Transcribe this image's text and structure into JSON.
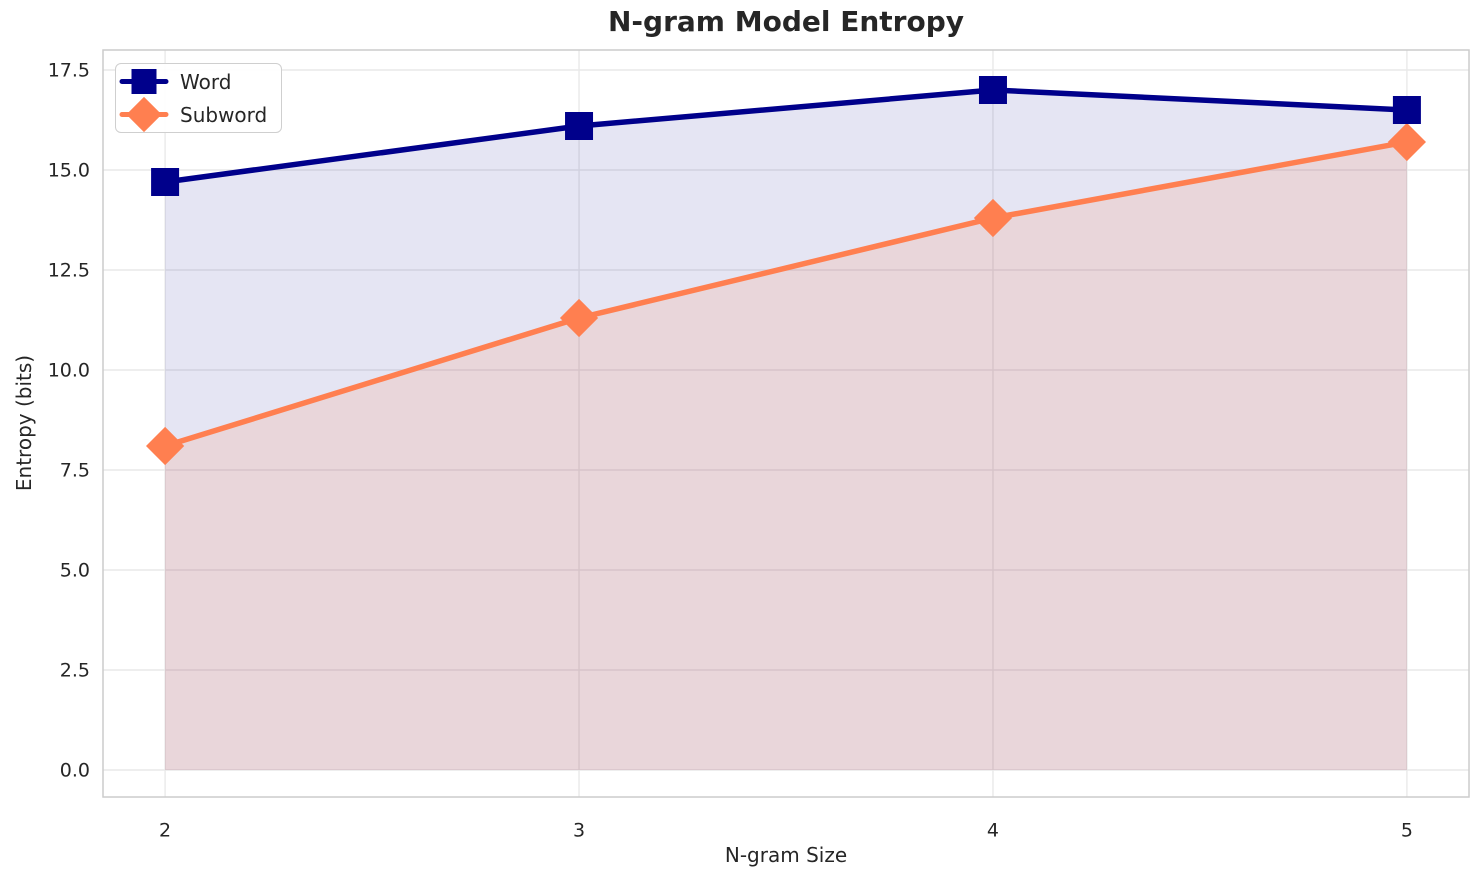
{
  "chart_data": {
    "type": "line",
    "title": "N-gram Model Entropy",
    "xlabel": "N-gram Size",
    "ylabel": "Entropy (bits)",
    "x": [
      2,
      3,
      4,
      5
    ],
    "series": [
      {
        "name": "Word",
        "color": "#00008B",
        "marker": "square",
        "fill_alpha": 0.1,
        "values": [
          14.7,
          16.1,
          17.0,
          16.5
        ]
      },
      {
        "name": "Subword",
        "color": "#FF7F50",
        "marker": "diamond",
        "fill_alpha": 0.15,
        "values": [
          8.1,
          11.3,
          13.8,
          15.7
        ]
      }
    ],
    "fill_to_zero": true,
    "xticks": [
      "2",
      "3",
      "4",
      "5"
    ],
    "yticks": [
      "0.0",
      "2.5",
      "5.0",
      "7.5",
      "10.0",
      "12.5",
      "15.0",
      "17.5"
    ],
    "xlim": [
      1.85,
      5.15
    ],
    "ylim": [
      -0.675,
      18.0
    ],
    "grid": true,
    "grid_color": "#e9e9e9",
    "spine_color": "#cccccc",
    "text_color": "#262626",
    "legend_position": "upper-left"
  }
}
